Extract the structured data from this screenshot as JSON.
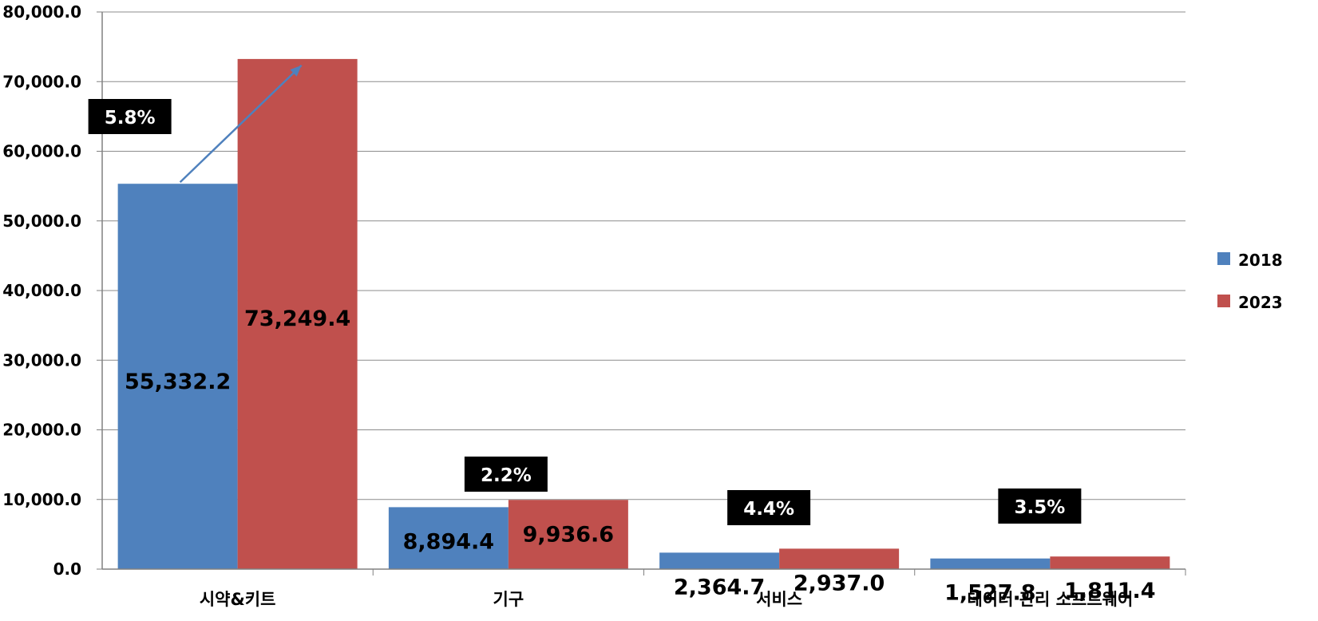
{
  "chart_data": {
    "type": "bar",
    "categories": [
      "시약&키트",
      "기구",
      "서비스",
      "데이터 관리 소프트웨어"
    ],
    "series": [
      {
        "name": "2018",
        "values": [
          55332.2,
          8894.4,
          2364.7,
          1527.8
        ],
        "labels": [
          "55,332.2",
          "8,894.4",
          "2,364.7",
          "1,527.8"
        ],
        "color": "#4F81BD"
      },
      {
        "name": "2023",
        "values": [
          73249.4,
          9936.6,
          2937.0,
          1811.4
        ],
        "labels": [
          "73,249.4",
          "9,936.6",
          "2,937.0",
          "1,811.4"
        ],
        "color": "#C0504D"
      }
    ],
    "growth_labels": [
      "5.8%",
      "2.2%",
      "4.4%",
      "3.5%"
    ],
    "ylim": [
      0,
      80000
    ],
    "yticks": [
      "0.0",
      "10,000.0",
      "20,000.0",
      "30,000.0",
      "40,000.0",
      "50,000.0",
      "60,000.0",
      "70,000.0",
      "80,000.0"
    ],
    "grid": true,
    "legend_position": "right",
    "annotation_arrow_color": "#4F81BD"
  }
}
